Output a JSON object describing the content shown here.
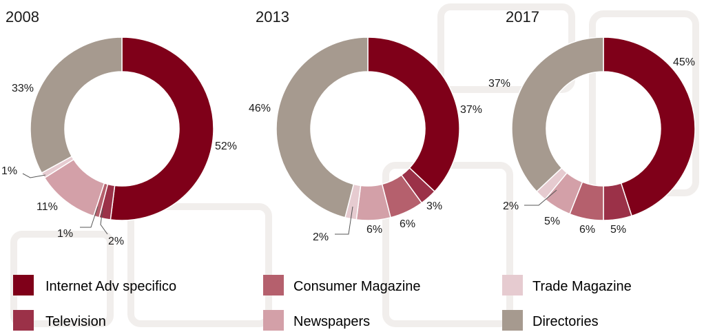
{
  "legend": {
    "items": [
      {
        "label": "Internet Adv specifico",
        "color": "#7f0019"
      },
      {
        "label": "Consumer Magazine",
        "color": "#b5606d"
      },
      {
        "label": "Trade Magazine",
        "color": "#e6cbd0"
      },
      {
        "label": "Television",
        "color": "#9b3148"
      },
      {
        "label": "Newspapers",
        "color": "#d3a0a8"
      },
      {
        "label": "Directories",
        "color": "#a69a8f"
      }
    ]
  },
  "chart_data": [
    {
      "type": "pie",
      "title": "2008",
      "labels": [
        "Internet Adv specifico",
        "Television",
        "Consumer Magazine",
        "Newspapers",
        "Trade Magazine",
        "Directories"
      ],
      "values": [
        52,
        2,
        1,
        11,
        1,
        33
      ],
      "value_labels": [
        "52%",
        "2%",
        "1%",
        "11%",
        "1%",
        "33%"
      ]
    },
    {
      "type": "pie",
      "title": "2013",
      "labels": [
        "Internet Adv specifico",
        "Television",
        "Consumer Magazine",
        "Newspapers",
        "Trade Magazine",
        "Directories"
      ],
      "values": [
        37,
        3,
        6,
        6,
        2,
        46
      ],
      "value_labels": [
        "37%",
        "3%",
        "6%",
        "6%",
        "2%",
        "46%"
      ]
    },
    {
      "type": "pie",
      "title": "2017",
      "labels": [
        "Internet Adv specifico",
        "Television",
        "Consumer Magazine",
        "Newspapers",
        "Trade Magazine",
        "Directories"
      ],
      "values": [
        45,
        5,
        6,
        5,
        2,
        37
      ],
      "value_labels": [
        "45%",
        "5%",
        "6%",
        "5%",
        "2%",
        "37%"
      ]
    }
  ]
}
